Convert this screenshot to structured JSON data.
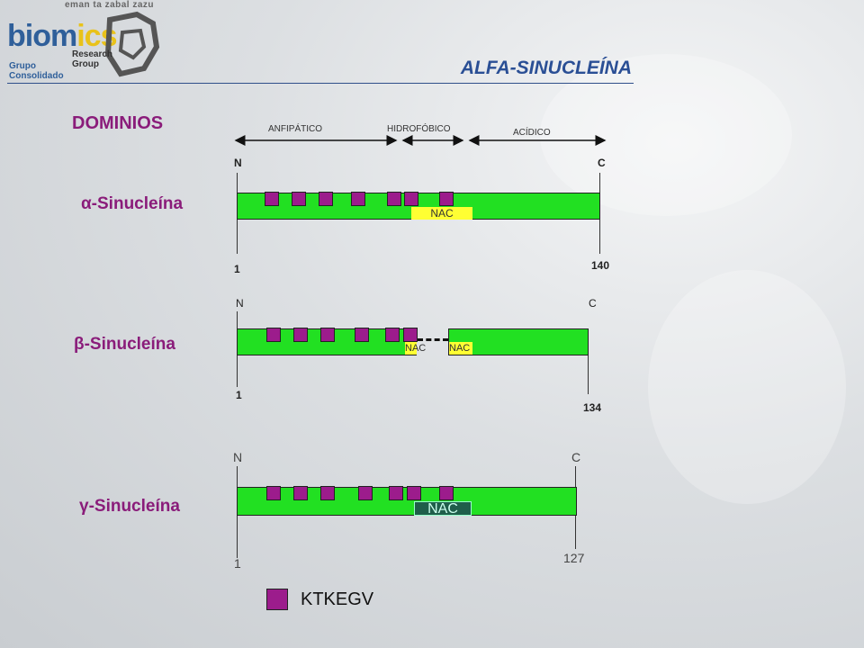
{
  "header": {
    "logo_top": "eman ta zabal zazu",
    "logo_word_a": "biom",
    "logo_word_b": "ics",
    "logo_sub_1": "Research",
    "logo_sub_2": "Group",
    "logo_grp_1": "Grupo",
    "logo_grp_2": "Consolidado",
    "title": "ALFA-SINUCLEÍNA"
  },
  "diagram": {
    "heading": "DOMINIOS",
    "domains": [
      "ANFIPÁTICO",
      "HIDROFÓBICO",
      "ACÍDICO"
    ],
    "proteins": [
      {
        "name": "α-Sinucleína",
        "n_label": "N",
        "c_label": "C",
        "start": "1",
        "end": "140",
        "nac": "NAC"
      },
      {
        "name": "β-Sinucleína",
        "n_label": "N",
        "c_label": "C",
        "start": "1",
        "end": "134",
        "nac_left": "NAC",
        "nac_right": "NAC"
      },
      {
        "name": "γ-Sinucleína",
        "n_label": "N",
        "c_label": "C",
        "start": "1",
        "end": "127",
        "nac": "NAC"
      }
    ],
    "legend": {
      "label": "KTKEGV",
      "color": "#9c1c8c"
    }
  },
  "colors": {
    "bar": "#22e022",
    "nac": "#ffff33",
    "repeat": "#9c1c8c",
    "title": "#2a4f95",
    "heading": "#8a1c7a"
  }
}
